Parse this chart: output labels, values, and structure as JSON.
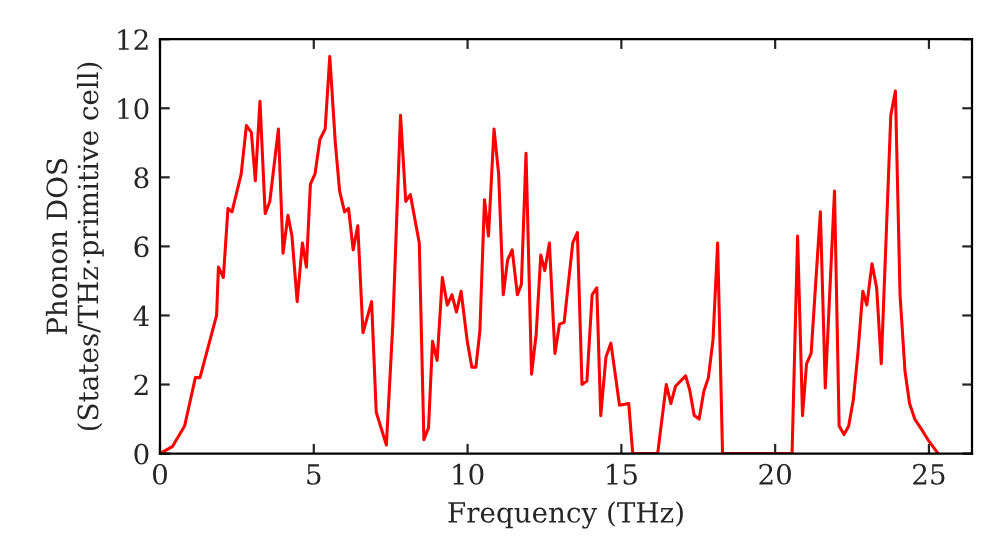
{
  "chart_data": {
    "type": "line",
    "xlabel": "Frequency (THz)",
    "ylabel": "Phonon DOS\n(States/THz·primitive cell)",
    "xlim": [
      0,
      26.4
    ],
    "ylim": [
      0,
      12
    ],
    "xticks": [
      0,
      5,
      10,
      15,
      20,
      25
    ],
    "yticks": [
      0,
      2,
      4,
      6,
      8,
      10,
      12
    ],
    "grid": false,
    "legend": false,
    "marker": "none",
    "line_style": "solid",
    "series": [
      {
        "color": "#ff0000",
        "x": [
          0,
          0.4,
          0.8,
          1.15,
          1.3,
          1.84,
          1.9,
          2.06,
          2.21,
          2.34,
          2.64,
          2.81,
          2.97,
          3.1,
          3.25,
          3.42,
          3.57,
          3.85,
          4.0,
          4.16,
          4.29,
          4.46,
          4.63,
          4.76,
          4.89,
          5.04,
          5.2,
          5.37,
          5.52,
          5.7,
          5.84,
          6.0,
          6.13,
          6.28,
          6.43,
          6.6,
          6.88,
          7.03,
          7.36,
          7.57,
          7.82,
          7.99,
          8.14,
          8.43,
          8.58,
          8.73,
          8.86,
          9.01,
          9.18,
          9.34,
          9.49,
          9.64,
          9.79,
          9.99,
          10.14,
          10.27,
          10.4,
          10.55,
          10.68,
          10.86,
          11.01,
          11.16,
          11.3,
          11.45,
          11.62,
          11.75,
          11.9,
          12.08,
          12.23,
          12.38,
          12.51,
          12.66,
          12.84,
          12.99,
          13.14,
          13.42,
          13.57,
          13.72,
          13.88,
          14.05,
          14.2,
          14.33,
          14.5,
          14.66,
          14.94,
          15.24,
          15.37,
          16.18,
          16.46,
          16.61,
          16.76,
          17.09,
          17.22,
          17.37,
          17.53,
          17.68,
          17.83,
          17.98,
          18.13,
          18.29,
          20.55,
          20.73,
          20.89,
          21.02,
          21.17,
          21.47,
          21.63,
          21.93,
          22.08,
          22.24,
          22.39,
          22.54,
          22.69,
          22.85,
          22.98,
          23.15,
          23.3,
          23.45,
          23.61,
          23.76,
          23.91,
          24.06,
          24.22,
          24.37,
          24.54,
          24.76,
          24.97,
          25.3
        ],
        "values": [
          0,
          0.2,
          0.8,
          2.2,
          2.2,
          4.0,
          5.4,
          5.1,
          7.1,
          7.0,
          8.1,
          9.5,
          9.3,
          7.9,
          10.2,
          6.95,
          7.3,
          9.4,
          5.8,
          6.9,
          6.3,
          4.4,
          6.1,
          5.4,
          7.8,
          8.1,
          9.1,
          9.4,
          11.5,
          9.0,
          7.6,
          7.0,
          7.1,
          5.9,
          6.6,
          3.5,
          4.4,
          1.2,
          0.25,
          3.75,
          9.8,
          7.3,
          7.5,
          6.1,
          0.4,
          0.75,
          3.25,
          2.7,
          5.1,
          4.3,
          4.6,
          4.1,
          4.7,
          3.25,
          2.5,
          2.5,
          3.55,
          7.35,
          6.3,
          9.4,
          8.1,
          4.6,
          5.6,
          5.9,
          4.6,
          4.9,
          8.7,
          2.3,
          3.45,
          5.75,
          5.3,
          6.1,
          2.9,
          3.75,
          3.8,
          6.1,
          6.4,
          2.0,
          2.1,
          4.6,
          4.8,
          1.1,
          2.8,
          3.2,
          1.4,
          1.45,
          0,
          0,
          2.0,
          1.45,
          1.95,
          2.25,
          1.85,
          1.1,
          1.0,
          1.8,
          2.2,
          3.3,
          6.1,
          0,
          0,
          6.3,
          1.1,
          2.6,
          2.9,
          7.0,
          1.9,
          7.6,
          0.8,
          0.55,
          0.8,
          1.55,
          2.9,
          4.7,
          4.3,
          5.5,
          4.8,
          2.6,
          6.3,
          9.8,
          10.5,
          4.6,
          2.4,
          1.45,
          1.0,
          0.7,
          0.4,
          0
        ]
      }
    ]
  }
}
